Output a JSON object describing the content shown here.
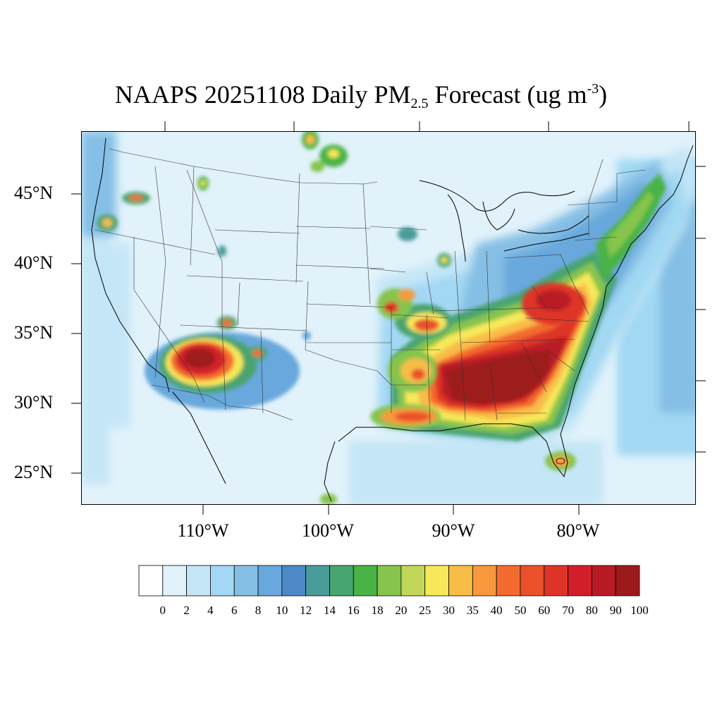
{
  "title": {
    "prefix": "NAAPS 20251108 Daily PM",
    "sub": "2.5",
    "mid": " Forecast (ug m",
    "sup": "-3",
    "suffix": ")"
  },
  "map": {
    "lat_labels": [
      "45°N",
      "40°N",
      "35°N",
      "30°N",
      "25°N"
    ],
    "lon_labels": [
      "110°W",
      "100°W",
      "90°W",
      "80°W"
    ],
    "extent": {
      "lon_min": -119.5,
      "lon_max": -70.5,
      "lat_min": 22.5,
      "lat_max": 49.5
    }
  },
  "colorbar": {
    "labels": [
      "0",
      "2",
      "4",
      "6",
      "8",
      "10",
      "12",
      "14",
      "16",
      "18",
      "20",
      "25",
      "30",
      "35",
      "40",
      "50",
      "60",
      "70",
      "80",
      "90",
      "100"
    ],
    "colors": [
      "#ffffff",
      "#e1f2fb",
      "#c4e6f6",
      "#a2d8f3",
      "#86bfe5",
      "#68a8dc",
      "#4c89c6",
      "#4a9c9a",
      "#48a470",
      "#49b347",
      "#86c44e",
      "#c2d65a",
      "#f7e85a",
      "#f8bd48",
      "#f7983d",
      "#f46b2f",
      "#ea512b",
      "#de3427",
      "#d2202a",
      "#b91b25",
      "#9d1a1c"
    ]
  },
  "plumes": [
    {
      "region": "southeast-us",
      "level": 100
    },
    {
      "region": "arizona",
      "level": 80
    },
    {
      "region": "missouri",
      "level": 50
    },
    {
      "region": "louisiana-coast",
      "level": 40
    },
    {
      "region": "appalachia",
      "level": 60
    },
    {
      "region": "south-florida",
      "level": 40
    }
  ]
}
